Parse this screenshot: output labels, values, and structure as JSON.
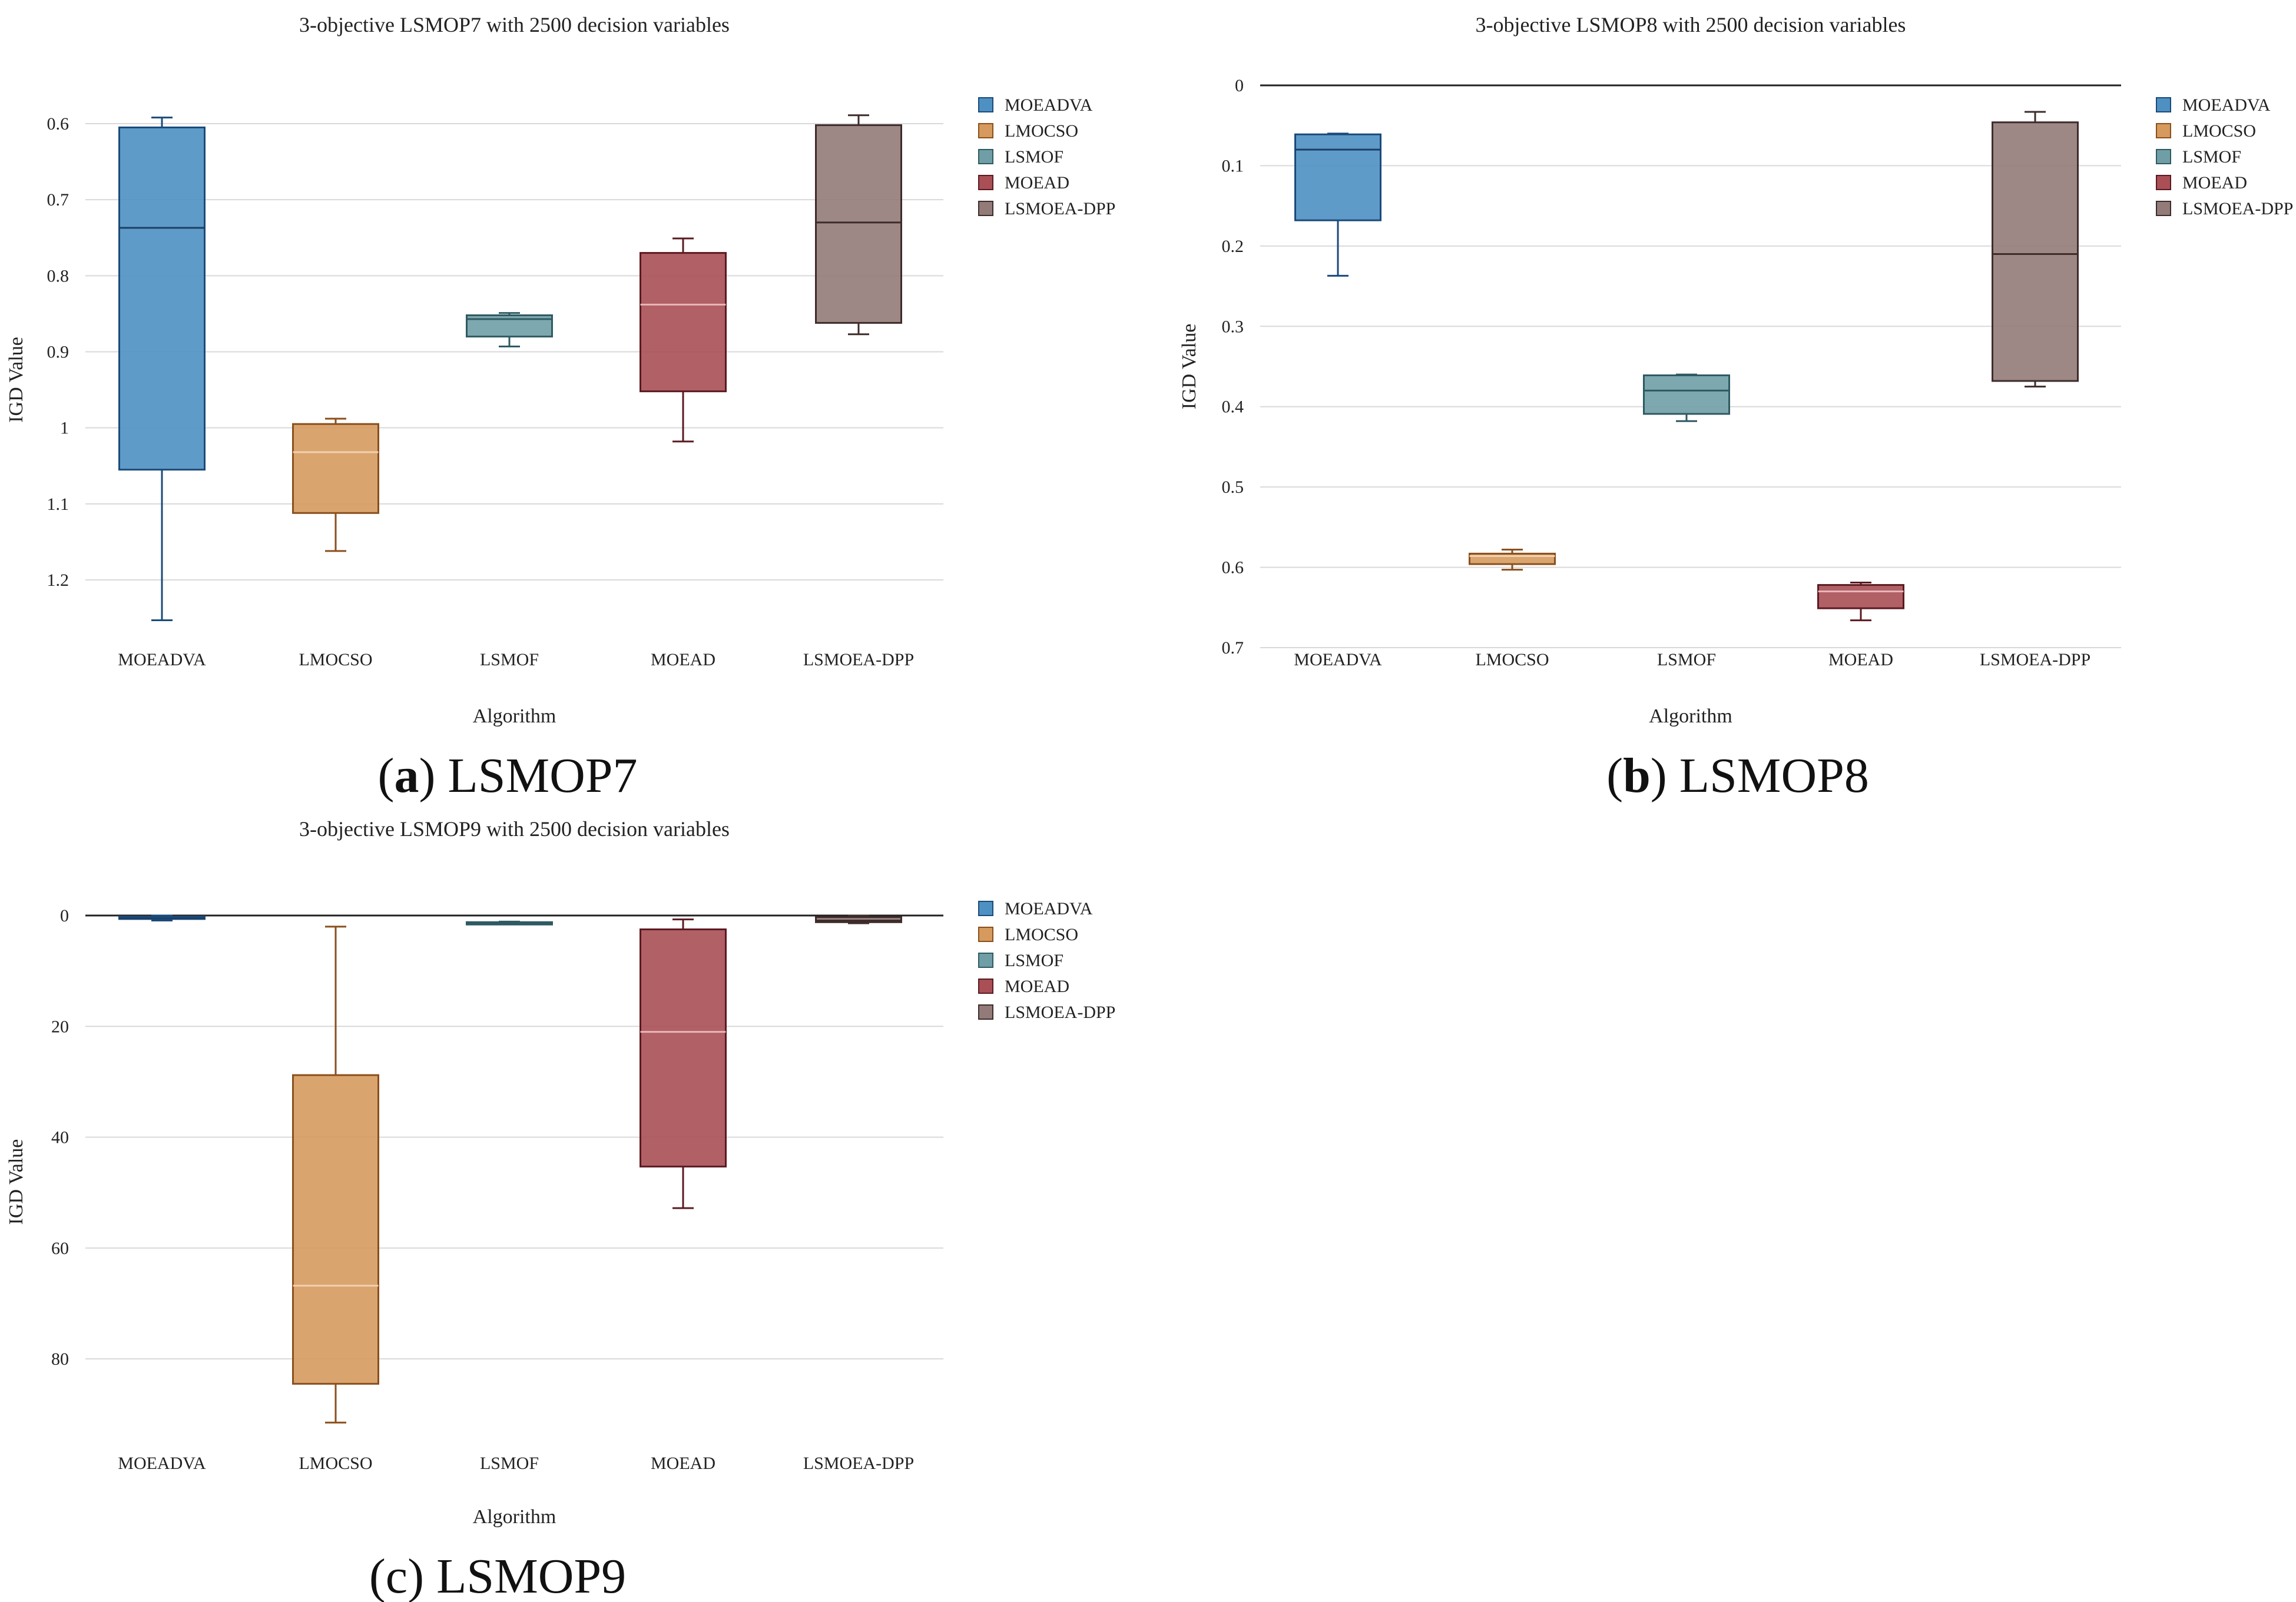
{
  "chart_data": [
    {
      "type": "box",
      "title": "3-objective LSMOP7 with 2500 decision variables",
      "xlabel": "Algorithm",
      "ylabel": "IGD Value",
      "ylim": [
        0.59,
        1.27
      ],
      "y_reversed": true,
      "yticks": [
        0.6,
        0.7,
        0.8,
        0.9,
        1,
        1.1,
        1.2
      ],
      "ytick_labels": [
        "0.6",
        "0.7",
        "0.8",
        "0.9",
        "1",
        "1.1",
        "1.2"
      ],
      "zero_line": false,
      "categories": [
        "MOEADVA",
        "LMOCSO",
        "LSMOF",
        "MOEAD",
        "LSMOEA-DPP"
      ],
      "boxes": [
        {
          "name": "MOEADVA",
          "whisker_low": 0.592,
          "q1": 0.605,
          "median": 0.737,
          "q3": 1.055,
          "whisker_high": 1.253
        },
        {
          "name": "LMOCSO",
          "whisker_low": 0.988,
          "q1": 0.995,
          "median": 1.032,
          "q3": 1.112,
          "whisker_high": 1.162
        },
        {
          "name": "LSMOF",
          "whisker_low": 0.849,
          "q1": 0.852,
          "median": 0.857,
          "q3": 0.88,
          "whisker_high": 0.893
        },
        {
          "name": "MOEAD",
          "whisker_low": 0.751,
          "q1": 0.77,
          "median": 0.838,
          "q3": 0.952,
          "whisker_high": 1.018
        },
        {
          "name": "LSMOEA-DPP",
          "whisker_low": 0.589,
          "q1": 0.602,
          "median": 0.73,
          "q3": 0.862,
          "whisker_high": 0.877
        }
      ],
      "caption_letter": "a",
      "caption_text": "LSMOP7"
    },
    {
      "type": "box",
      "title": "3-objective LSMOP8 with 2500 decision variables",
      "xlabel": "Algorithm",
      "ylabel": "IGD Value",
      "ylim": [
        0,
        0.7
      ],
      "y_reversed": true,
      "yticks": [
        0,
        0.1,
        0.2,
        0.3,
        0.4,
        0.5,
        0.6,
        0.7
      ],
      "ytick_labels": [
        "0",
        "0.1",
        "0.2",
        "0.3",
        "0.4",
        "0.5",
        "0.6",
        "0.7"
      ],
      "zero_line": true,
      "categories": [
        "MOEADVA",
        "LMOCSO",
        "LSMOF",
        "MOEAD",
        "LSMOEA-DPP"
      ],
      "boxes": [
        {
          "name": "MOEADVA",
          "whisker_low": 0.06,
          "q1": 0.061,
          "median": 0.08,
          "q3": 0.168,
          "whisker_high": 0.237
        },
        {
          "name": "LMOCSO",
          "whisker_low": 0.578,
          "q1": 0.583,
          "median": 0.586,
          "q3": 0.596,
          "whisker_high": 0.603
        },
        {
          "name": "LSMOF",
          "whisker_low": 0.36,
          "q1": 0.361,
          "median": 0.38,
          "q3": 0.409,
          "whisker_high": 0.418
        },
        {
          "name": "MOEAD",
          "whisker_low": 0.619,
          "q1": 0.622,
          "median": 0.63,
          "q3": 0.651,
          "whisker_high": 0.666
        },
        {
          "name": "LSMOEA-DPP",
          "whisker_low": 0.033,
          "q1": 0.046,
          "median": 0.21,
          "q3": 0.368,
          "whisker_high": 0.375
        }
      ],
      "caption_letter": "b",
      "caption_text": "LSMOP8"
    },
    {
      "type": "box",
      "title": "3-objective LSMOP9 with 2500 decision variables",
      "xlabel": "Algorithm",
      "ylabel": "IGD Value",
      "ylim": [
        0,
        97
      ],
      "y_reversed": true,
      "yticks": [
        0,
        20,
        40,
        60,
        80
      ],
      "ytick_labels": [
        "0",
        "20",
        "40",
        "60",
        "80"
      ],
      "zero_line": true,
      "categories": [
        "MOEADVA",
        "LMOCSO",
        "LSMOF",
        "MOEAD",
        "LSMOEA-DPP"
      ],
      "boxes": [
        {
          "name": "MOEADVA",
          "whisker_low": 0.0,
          "q1": 0.2,
          "median": 0.5,
          "q3": 0.6,
          "whisker_high": 0.9
        },
        {
          "name": "LMOCSO",
          "whisker_low": 2.0,
          "q1": 28.8,
          "median": 66.8,
          "q3": 84.5,
          "whisker_high": 91.5
        },
        {
          "name": "LSMOF",
          "whisker_low": 1.1,
          "q1": 1.2,
          "median": 1.4,
          "q3": 1.5,
          "whisker_high": 1.6
        },
        {
          "name": "MOEAD",
          "whisker_low": 0.7,
          "q1": 2.5,
          "median": 21.0,
          "q3": 45.3,
          "whisker_high": 52.8
        },
        {
          "name": "LSMOEA-DPP",
          "whisker_low": 0.0,
          "q1": 0.3,
          "median": 0.9,
          "q3": 1.2,
          "whisker_high": 1.4
        }
      ],
      "caption_letter": "c",
      "caption_text": "LSMOP9"
    }
  ],
  "legend": [
    {
      "label": "MOEADVA",
      "fill": "#4e90c2",
      "stroke": "#1b4a7a"
    },
    {
      "label": "LMOCSO",
      "fill": "#d69a5f",
      "stroke": "#8a4f1c"
    },
    {
      "label": "LSMOF",
      "fill": "#6f9ea6",
      "stroke": "#2f5a62"
    },
    {
      "label": "MOEAD",
      "fill": "#a94f55",
      "stroke": "#5a1a20"
    },
    {
      "label": "LSMOEA-DPP",
      "fill": "#927b79",
      "stroke": "#3e2c2b"
    }
  ],
  "box_fills": [
    "#4e90c2",
    "#d69a5f",
    "#6f9ea6",
    "#a94f55",
    "#927b79"
  ],
  "box_strokes": [
    "#1b4a7a",
    "#8a4f1c",
    "#2f5a62",
    "#5a1a20",
    "#3e2c2b"
  ],
  "median_strokes": [
    "#1b3f66",
    "#f0d2b0",
    "#2f5a62",
    "#e8b6b9",
    "#3e2c2b"
  ]
}
